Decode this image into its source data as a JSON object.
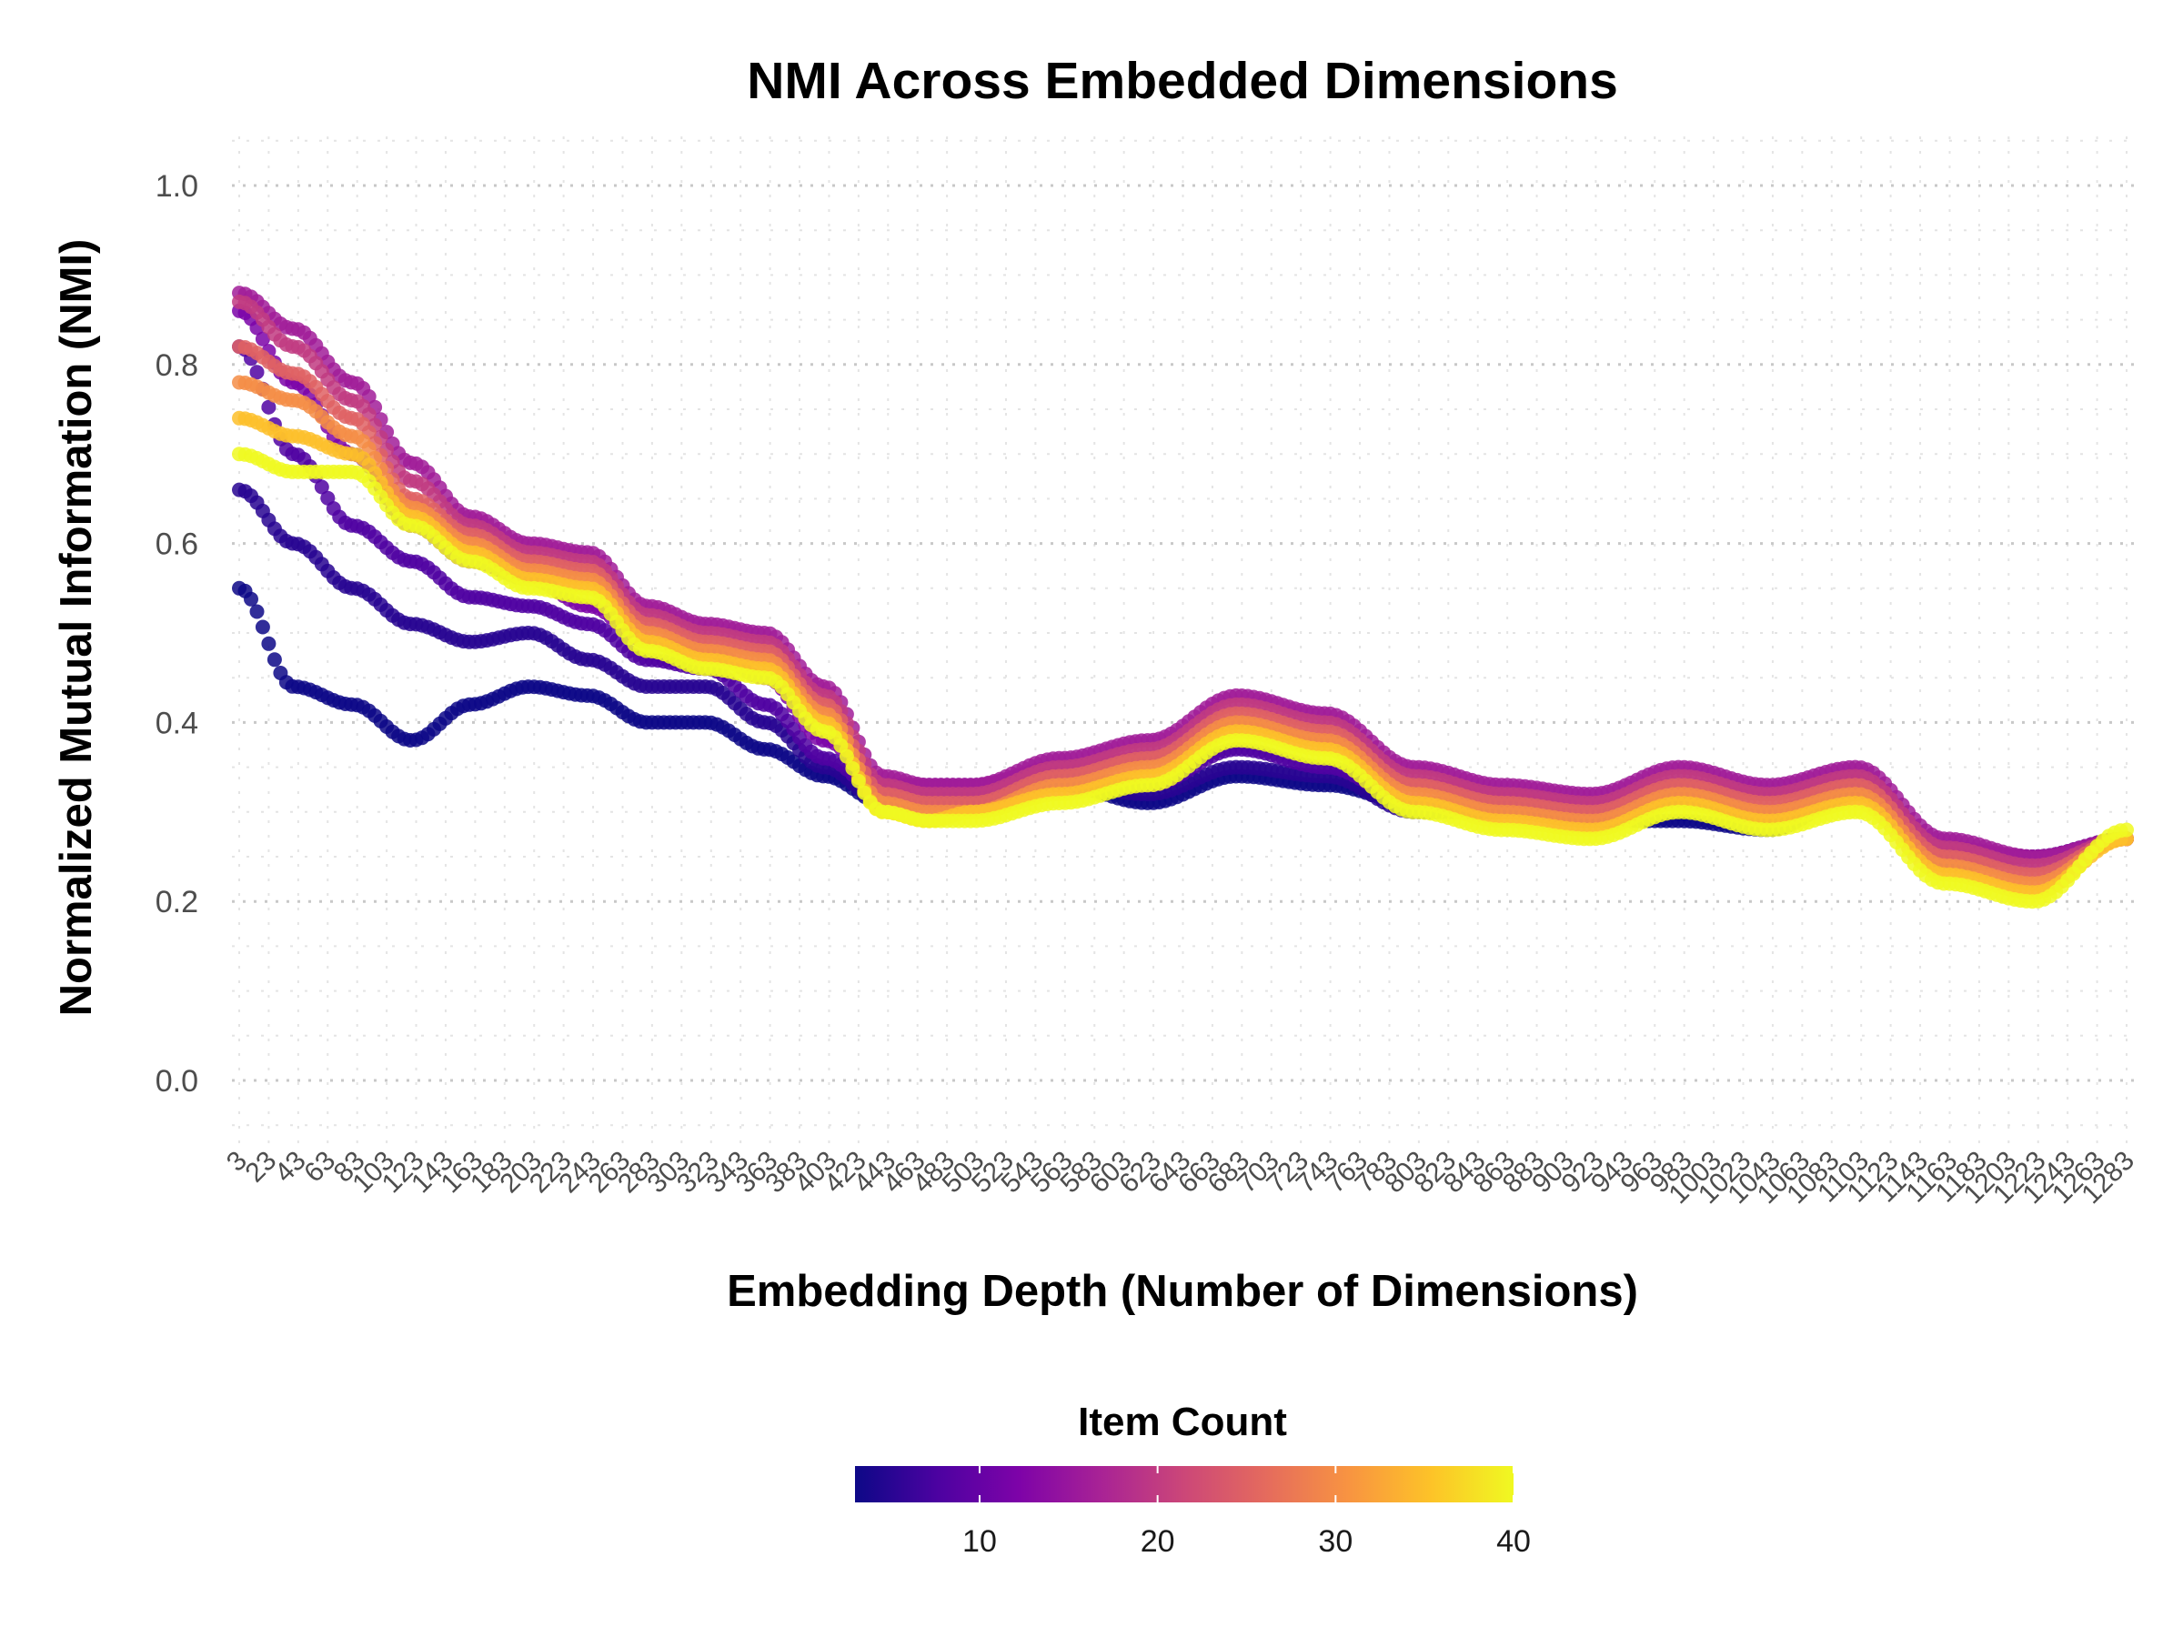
{
  "chart_data": {
    "type": "scatter",
    "title": "NMI Across Embedded Dimensions",
    "xlabel": "Embedding Depth (Number of Dimensions)",
    "ylabel": "Normalized Mutual Information (NMI)",
    "ylim": [
      -0.05,
      1.05
    ],
    "yticks": [
      "0.0",
      "0.2",
      "0.4",
      "0.6",
      "0.8",
      "1.0"
    ],
    "xlim": [
      3,
      1283
    ],
    "xticks": [
      "3",
      "23",
      "43",
      "63",
      "83",
      "103",
      "123",
      "143",
      "163",
      "183",
      "203",
      "223",
      "243",
      "263",
      "283",
      "303",
      "323",
      "343",
      "363",
      "383",
      "403",
      "423",
      "443",
      "463",
      "483",
      "503",
      "523",
      "543",
      "563",
      "583",
      "603",
      "623",
      "643",
      "663",
      "683",
      "703",
      "723",
      "743",
      "763",
      "783",
      "803",
      "823",
      "843",
      "863",
      "883",
      "903",
      "923",
      "943",
      "963",
      "983",
      "1003",
      "1023",
      "1043",
      "1063",
      "1083",
      "1103",
      "1123",
      "1143",
      "1163",
      "1183",
      "1203",
      "1223",
      "1243",
      "1263",
      "1283"
    ],
    "grid": true,
    "colorscale": "plasma",
    "color_range": [
      3,
      40
    ],
    "series": [
      {
        "name": "Item Count 3",
        "item_count": 3,
        "x": [
          3,
          40,
          80,
          120,
          160,
          200,
          240,
          280,
          320,
          360,
          400,
          440,
          470,
          500,
          560,
          620,
          680,
          740,
          800,
          860,
          920,
          980,
          1040,
          1100,
          1160,
          1220,
          1283
        ],
        "y": [
          0.55,
          0.44,
          0.42,
          0.38,
          0.42,
          0.44,
          0.43,
          0.4,
          0.4,
          0.37,
          0.34,
          0.31,
          0.31,
          0.32,
          0.33,
          0.31,
          0.34,
          0.33,
          0.31,
          0.3,
          0.29,
          0.29,
          0.28,
          0.32,
          0.24,
          0.25,
          0.27
        ]
      },
      {
        "name": "Item Count 5",
        "item_count": 5,
        "x": [
          3,
          40,
          80,
          120,
          160,
          200,
          240,
          280,
          320,
          360,
          400,
          440,
          470,
          500,
          560,
          620,
          680,
          740,
          800,
          860,
          920,
          980,
          1040,
          1100,
          1160,
          1220,
          1283
        ],
        "y": [
          0.66,
          0.6,
          0.55,
          0.51,
          0.49,
          0.5,
          0.47,
          0.44,
          0.44,
          0.4,
          0.35,
          0.31,
          0.31,
          0.31,
          0.33,
          0.32,
          0.35,
          0.34,
          0.3,
          0.3,
          0.3,
          0.31,
          0.29,
          0.32,
          0.25,
          0.25,
          0.27
        ]
      },
      {
        "name": "Item Count 8",
        "item_count": 8,
        "x": [
          3,
          40,
          80,
          120,
          160,
          200,
          240,
          280,
          320,
          360,
          400,
          440,
          470,
          500,
          560,
          620,
          680,
          740,
          800,
          860,
          920,
          980,
          1040,
          1100,
          1160,
          1220,
          1283
        ],
        "y": [
          0.82,
          0.7,
          0.62,
          0.58,
          0.54,
          0.53,
          0.51,
          0.47,
          0.46,
          0.42,
          0.36,
          0.32,
          0.32,
          0.32,
          0.34,
          0.33,
          0.37,
          0.35,
          0.31,
          0.31,
          0.3,
          0.32,
          0.3,
          0.33,
          0.25,
          0.25,
          0.27
        ]
      },
      {
        "name": "Item Count 12",
        "item_count": 12,
        "x": [
          3,
          40,
          80,
          120,
          160,
          200,
          240,
          280,
          320,
          360,
          400,
          440,
          470,
          500,
          560,
          620,
          680,
          740,
          800,
          860,
          920,
          980,
          1040,
          1100,
          1160,
          1220,
          1283
        ],
        "y": [
          0.86,
          0.78,
          0.7,
          0.62,
          0.58,
          0.56,
          0.53,
          0.49,
          0.48,
          0.45,
          0.38,
          0.33,
          0.33,
          0.33,
          0.35,
          0.36,
          0.4,
          0.38,
          0.33,
          0.32,
          0.31,
          0.33,
          0.32,
          0.34,
          0.26,
          0.25,
          0.27
        ]
      },
      {
        "name": "Item Count 16",
        "item_count": 16,
        "x": [
          3,
          40,
          80,
          120,
          160,
          200,
          240,
          280,
          320,
          360,
          400,
          440,
          470,
          500,
          560,
          620,
          680,
          740,
          800,
          860,
          920,
          980,
          1040,
          1100,
          1160,
          1220,
          1283
        ],
        "y": [
          0.88,
          0.84,
          0.78,
          0.69,
          0.63,
          0.6,
          0.59,
          0.53,
          0.51,
          0.5,
          0.44,
          0.34,
          0.33,
          0.33,
          0.36,
          0.38,
          0.43,
          0.41,
          0.35,
          0.33,
          0.32,
          0.35,
          0.33,
          0.35,
          0.27,
          0.25,
          0.27
        ]
      },
      {
        "name": "Item Count 20",
        "item_count": 20,
        "x": [
          3,
          40,
          80,
          120,
          160,
          200,
          240,
          280,
          320,
          360,
          400,
          440,
          470,
          500,
          560,
          620,
          680,
          740,
          800,
          860,
          920,
          980,
          1040,
          1100,
          1160,
          1220,
          1283
        ],
        "y": [
          0.87,
          0.82,
          0.76,
          0.67,
          0.62,
          0.59,
          0.58,
          0.52,
          0.5,
          0.49,
          0.43,
          0.33,
          0.32,
          0.32,
          0.35,
          0.37,
          0.42,
          0.4,
          0.34,
          0.32,
          0.31,
          0.34,
          0.32,
          0.34,
          0.26,
          0.24,
          0.27
        ]
      },
      {
        "name": "Item Count 25",
        "item_count": 25,
        "x": [
          3,
          40,
          80,
          120,
          160,
          200,
          240,
          280,
          320,
          360,
          400,
          440,
          470,
          500,
          560,
          620,
          680,
          740,
          800,
          860,
          920,
          980,
          1040,
          1100,
          1160,
          1220,
          1283
        ],
        "y": [
          0.82,
          0.79,
          0.74,
          0.65,
          0.61,
          0.58,
          0.57,
          0.51,
          0.49,
          0.48,
          0.42,
          0.32,
          0.31,
          0.31,
          0.34,
          0.36,
          0.41,
          0.39,
          0.33,
          0.31,
          0.3,
          0.33,
          0.31,
          0.33,
          0.25,
          0.23,
          0.27
        ]
      },
      {
        "name": "Item Count 30",
        "item_count": 30,
        "x": [
          3,
          40,
          80,
          120,
          160,
          200,
          240,
          280,
          320,
          360,
          400,
          440,
          470,
          500,
          560,
          620,
          680,
          740,
          800,
          860,
          920,
          980,
          1040,
          1100,
          1160,
          1220,
          1283
        ],
        "y": [
          0.78,
          0.76,
          0.72,
          0.64,
          0.6,
          0.57,
          0.56,
          0.5,
          0.48,
          0.47,
          0.41,
          0.31,
          0.3,
          0.3,
          0.33,
          0.35,
          0.4,
          0.38,
          0.32,
          0.3,
          0.29,
          0.32,
          0.3,
          0.32,
          0.24,
          0.22,
          0.27
        ]
      },
      {
        "name": "Item Count 35",
        "item_count": 35,
        "x": [
          3,
          40,
          80,
          120,
          160,
          200,
          240,
          280,
          320,
          360,
          400,
          440,
          470,
          500,
          560,
          620,
          680,
          740,
          800,
          860,
          920,
          980,
          1040,
          1100,
          1160,
          1220,
          1283
        ],
        "y": [
          0.74,
          0.72,
          0.7,
          0.63,
          0.59,
          0.56,
          0.55,
          0.49,
          0.47,
          0.46,
          0.4,
          0.3,
          0.29,
          0.3,
          0.32,
          0.34,
          0.39,
          0.37,
          0.31,
          0.29,
          0.28,
          0.31,
          0.29,
          0.31,
          0.23,
          0.21,
          0.27
        ]
      },
      {
        "name": "Item Count 40",
        "item_count": 40,
        "x": [
          3,
          40,
          80,
          120,
          160,
          200,
          240,
          280,
          320,
          360,
          400,
          440,
          470,
          500,
          560,
          620,
          680,
          740,
          800,
          860,
          920,
          980,
          1040,
          1100,
          1160,
          1220,
          1283
        ],
        "y": [
          0.7,
          0.68,
          0.68,
          0.62,
          0.58,
          0.55,
          0.54,
          0.48,
          0.46,
          0.45,
          0.39,
          0.3,
          0.29,
          0.29,
          0.31,
          0.33,
          0.38,
          0.36,
          0.3,
          0.28,
          0.27,
          0.3,
          0.28,
          0.3,
          0.22,
          0.2,
          0.28
        ]
      }
    ],
    "legend": {
      "title": "Item Count",
      "position": "bottom",
      "ticks": [
        "10",
        "20",
        "30",
        "40"
      ],
      "tick_values": [
        10,
        20,
        30,
        40
      ]
    }
  }
}
